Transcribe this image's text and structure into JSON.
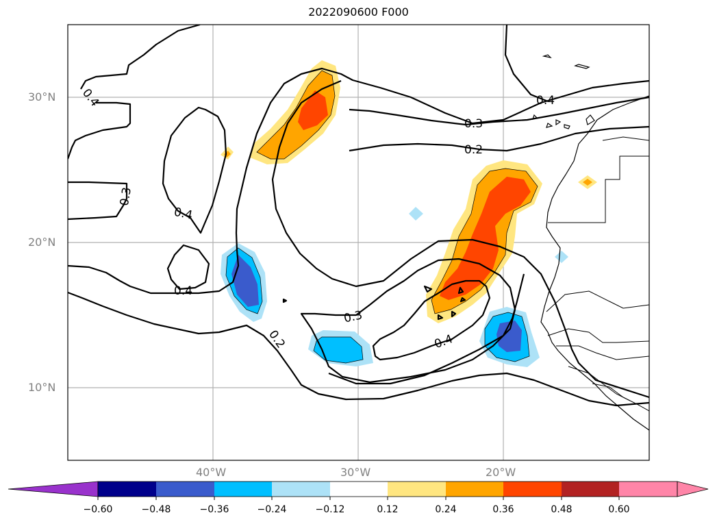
{
  "title": "2022090600 F000",
  "lat_labels": [
    "30°N",
    "20°N",
    "10°N"
  ],
  "lon_labels": [
    "40°W",
    "30°W",
    "20°W"
  ],
  "contour_labels": [
    "0.4",
    "0.3",
    "0.4",
    "0.4",
    "0.2",
    "0.3",
    "0.4",
    "0.4",
    "0.3",
    "0.2"
  ],
  "colorbar": {
    "ticks": [
      "−0.60",
      "−0.48",
      "−0.36",
      "−0.24",
      "−0.12",
      "0.12",
      "0.24",
      "0.36",
      "0.48",
      "0.60"
    ],
    "colors": [
      "#9932CC",
      "#00008B",
      "#3A5BCC",
      "#00BFFF",
      "#ADE2F7",
      "#FFFFFF",
      "#FFE680",
      "#FFA500",
      "#FF4500",
      "#B22222",
      "#FF85A8"
    ]
  }
}
